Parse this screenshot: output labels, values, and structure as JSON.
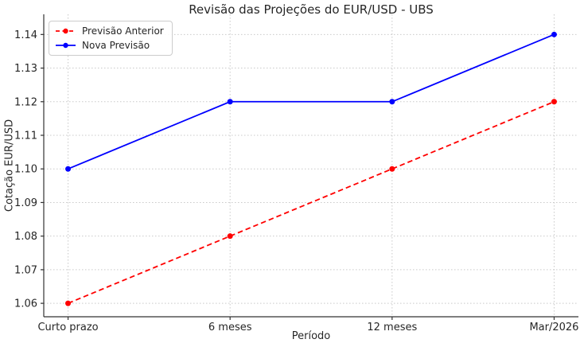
{
  "chart_data": {
    "type": "line",
    "title": "Revisão das Projeções do EUR/USD - UBS",
    "xlabel": "Período",
    "ylabel": "Cotação EUR/USD",
    "categories": [
      "Curto prazo",
      "6 meses",
      "12 meses",
      "Mar/2026"
    ],
    "series": [
      {
        "name": "Previsão Anterior",
        "values": [
          1.06,
          1.08,
          1.1,
          1.12
        ],
        "color": "#ff0000",
        "style": "dashed",
        "marker": "circle"
      },
      {
        "name": "Nova Previsão",
        "values": [
          1.1,
          1.12,
          1.12,
          1.14
        ],
        "color": "#0000ff",
        "style": "solid",
        "marker": "circle"
      }
    ],
    "yticks": [
      1.06,
      1.07,
      1.08,
      1.09,
      1.1,
      1.11,
      1.12,
      1.13,
      1.14
    ],
    "ylim": [
      1.056,
      1.146
    ],
    "x_margin": 0.15,
    "grid": true,
    "legend_position": "upper left",
    "colors": {
      "grid": "#c9c9c9",
      "axis": "#333333",
      "text": "#262626"
    }
  }
}
